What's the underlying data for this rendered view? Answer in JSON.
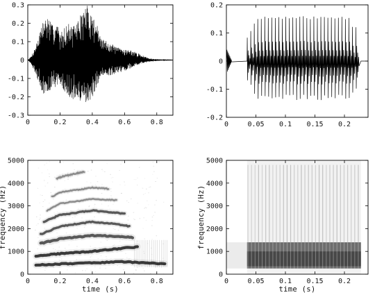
{
  "chart_data": [
    {
      "type": "line",
      "panel": "top-left",
      "xlim": [
        0,
        0.9
      ],
      "ylim": [
        -0.3,
        0.3
      ],
      "xticks": [
        "0",
        "0.2",
        "0.4",
        "0.6",
        "0.8"
      ],
      "xtick_values": [
        0,
        0.2,
        0.4,
        0.6,
        0.8
      ],
      "yticks": [
        "-0.3",
        "-0.2",
        "-0.1",
        "0",
        "0.1",
        "0.2",
        "0.3"
      ],
      "ytick_values": [
        -0.3,
        -0.2,
        -0.1,
        0,
        0.1,
        0.2,
        0.3
      ],
      "xlabel": "",
      "ylabel": "",
      "envelope": {
        "t": [
          0,
          0.02,
          0.05,
          0.08,
          0.1,
          0.13,
          0.15,
          0.18,
          0.2,
          0.22,
          0.25,
          0.28,
          0.3,
          0.33,
          0.35,
          0.37,
          0.4,
          0.43,
          0.45,
          0.5,
          0.55,
          0.6,
          0.65,
          0.7,
          0.75,
          0.8,
          0.85,
          0.9
        ],
        "upper": [
          0,
          0.02,
          0.08,
          0.18,
          0.22,
          0.24,
          0.19,
          0.21,
          0.14,
          0.17,
          0.2,
          0.18,
          0.2,
          0.25,
          0.28,
          0.3,
          0.25,
          0.2,
          0.12,
          0.1,
          0.07,
          0.06,
          0.05,
          0.03,
          0.01,
          0.005,
          0.002,
          0.001
        ],
        "lower": [
          0,
          -0.02,
          -0.08,
          -0.15,
          -0.2,
          -0.18,
          -0.14,
          -0.15,
          -0.14,
          -0.16,
          -0.2,
          -0.22,
          -0.21,
          -0.24,
          -0.25,
          -0.23,
          -0.21,
          -0.14,
          -0.1,
          -0.09,
          -0.07,
          -0.06,
          -0.04,
          -0.02,
          -0.01,
          -0.005,
          -0.002,
          -0.001
        ]
      }
    },
    {
      "type": "line",
      "panel": "top-right",
      "xlim": [
        0,
        0.24
      ],
      "ylim": [
        -0.2,
        0.2
      ],
      "xticks": [
        "0",
        "0.05",
        "0.1",
        "0.15",
        "0.2"
      ],
      "xtick_values": [
        0,
        0.05,
        0.1,
        0.15,
        0.2
      ],
      "yticks": [
        "-0.2",
        "-0.1",
        "0",
        "0.1",
        "0.2"
      ],
      "ytick_values": [
        -0.2,
        -0.1,
        0,
        0.1,
        0.2
      ],
      "xlabel": "",
      "ylabel": "",
      "pulse_onset": 0.035,
      "pulse_offset": 0.225,
      "pulse_count": 32,
      "pulse_peak": 0.16,
      "pulse_trough": -0.14
    },
    {
      "type": "heatmap",
      "panel": "bottom-left",
      "xlim": [
        0,
        0.9
      ],
      "ylim": [
        0,
        5000
      ],
      "xticks": [
        "0",
        "0.2",
        "0.4",
        "0.6",
        "0.8"
      ],
      "xtick_values": [
        0,
        0.2,
        0.4,
        0.6,
        0.8
      ],
      "yticks": [
        "0",
        "1000",
        "2000",
        "3000",
        "4000",
        "5000"
      ],
      "ytick_values": [
        0,
        1000,
        2000,
        3000,
        4000,
        5000
      ],
      "xlabel": "time (s)",
      "ylabel": "frequency (Hz)",
      "formant_tracks": [
        {
          "t": [
            0.05,
            0.2,
            0.4,
            0.6,
            0.7,
            0.85
          ],
          "f": [
            400,
            450,
            500,
            550,
            500,
            450
          ]
        },
        {
          "t": [
            0.05,
            0.2,
            0.4,
            0.6,
            0.68
          ],
          "f": [
            800,
            900,
            1000,
            1150,
            1200
          ]
        },
        {
          "t": [
            0.08,
            0.2,
            0.4,
            0.6,
            0.65
          ],
          "f": [
            1350,
            1550,
            1700,
            1650,
            1600
          ]
        },
        {
          "t": [
            0.08,
            0.2,
            0.4,
            0.55,
            0.63
          ],
          "f": [
            1750,
            2100,
            2300,
            2200,
            2100
          ]
        },
        {
          "t": [
            0.1,
            0.2,
            0.4,
            0.55,
            0.6
          ],
          "f": [
            2300,
            2600,
            2800,
            2700,
            2650
          ]
        },
        {
          "t": [
            0.12,
            0.2,
            0.4,
            0.55
          ],
          "f": [
            2800,
            3100,
            3300,
            3250
          ]
        },
        {
          "t": [
            0.15,
            0.2,
            0.4,
            0.5
          ],
          "f": [
            3400,
            3600,
            3800,
            3750
          ]
        },
        {
          "t": [
            0.18,
            0.22,
            0.35
          ],
          "f": [
            4200,
            4300,
            4500
          ]
        }
      ]
    },
    {
      "type": "heatmap",
      "panel": "bottom-right",
      "xlim": [
        0,
        0.24
      ],
      "ylim": [
        0,
        5000
      ],
      "xticks": [
        "0",
        "0.05",
        "0.1",
        "0.15",
        "0.2"
      ],
      "xtick_values": [
        0,
        0.05,
        0.1,
        0.15,
        0.2
      ],
      "yticks": [
        "0",
        "1000",
        "2000",
        "3000",
        "4000",
        "5000"
      ],
      "ytick_values": [
        0,
        1000,
        2000,
        3000,
        4000,
        5000
      ],
      "xlabel": "time (s)",
      "ylabel": "frequency (Hz)",
      "dark_band_hz": [
        250,
        1400
      ],
      "onset_s": 0.035,
      "offset_s": 0.228,
      "striation_count": 32
    }
  ]
}
